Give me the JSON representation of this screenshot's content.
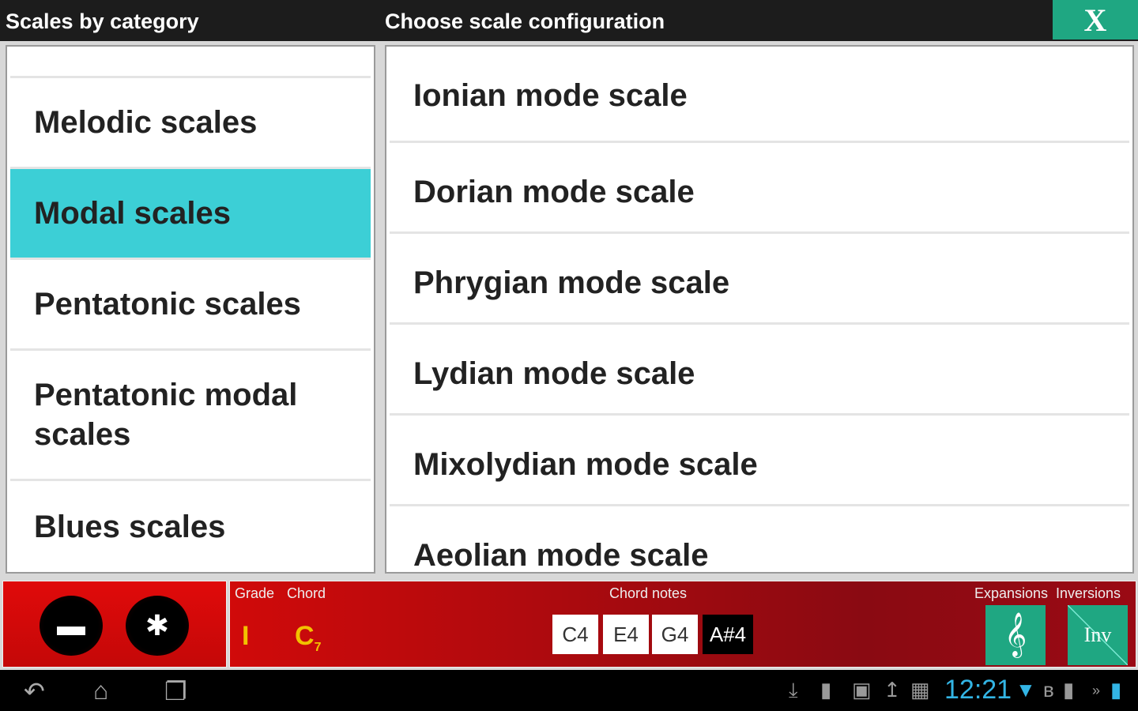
{
  "header": {
    "left_title": "Scales by category",
    "right_title": "Choose scale configuration",
    "close_label": "X"
  },
  "categories": [
    {
      "label": ""
    },
    {
      "label": "Melodic scales"
    },
    {
      "label": "Modal scales",
      "selected": true
    },
    {
      "label": "Pentatonic scales"
    },
    {
      "label": "Pentatonic modal scales"
    },
    {
      "label": "Blues scales"
    }
  ],
  "scales": [
    {
      "label": "Ionian mode scale"
    },
    {
      "label": "Dorian mode scale"
    },
    {
      "label": "Phrygian mode scale"
    },
    {
      "label": "Lydian mode scale"
    },
    {
      "label": "Mixolydian mode scale"
    },
    {
      "label": "Aeolian mode scale"
    }
  ],
  "bottom": {
    "grade_label": "Grade",
    "chord_label": "Chord",
    "grade": "I",
    "chord": "C",
    "chord_suffix": "7",
    "notes_label": "Chord notes",
    "notes": [
      "C4",
      "E4",
      "G4",
      "A#4"
    ],
    "expansions_label": "Expansions",
    "inversions_label": "Inversions",
    "inv_button": "Inv"
  },
  "status": {
    "time": "12:21"
  },
  "colors": {
    "selected": "#3ccfd6",
    "accent_green": "#1fa782",
    "bar_red": "#d00a0a",
    "chord_yellow": "#f2c200",
    "time_blue": "#33b5e5"
  }
}
